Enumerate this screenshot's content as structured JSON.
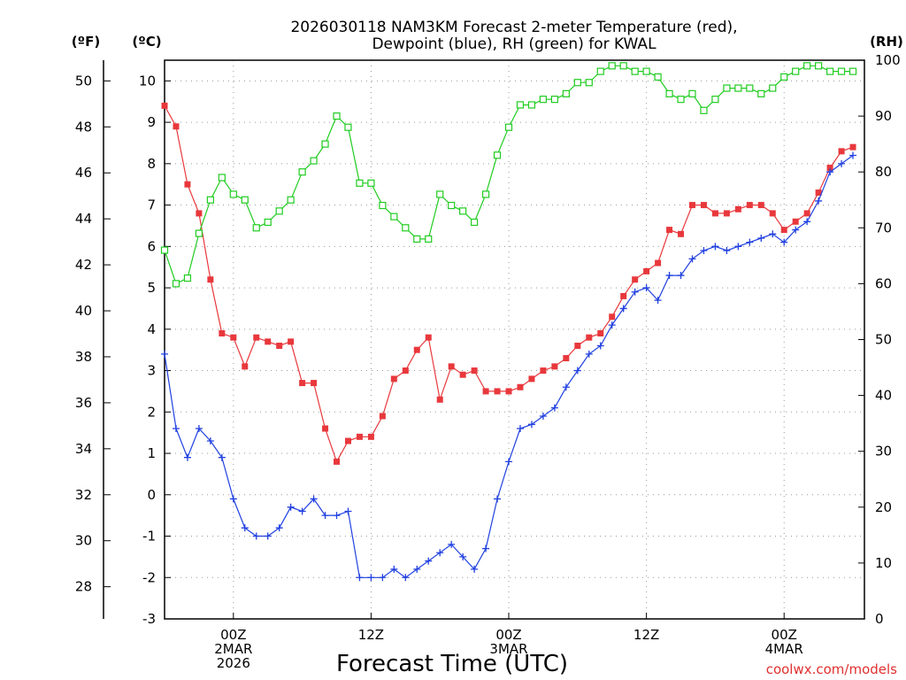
{
  "chart_data": {
    "type": "line",
    "title": "2026030118 NAM3KM Forecast 2-meter Temperature (red),",
    "subtitle": "Dewpoint (blue), RH (green) for KWAL",
    "xlabel": "Forecast Time (UTC)",
    "credit": "coolwx.com/models",
    "axes": {
      "fahrenheit": {
        "label": "(ºF)",
        "ticks": [
          28,
          30,
          32,
          34,
          36,
          38,
          40,
          42,
          44,
          46,
          48,
          50
        ]
      },
      "celsius": {
        "label": "(ºC)",
        "ticks": [
          -3,
          -2,
          -1,
          0,
          1,
          2,
          3,
          4,
          5,
          6,
          7,
          8,
          9,
          10
        ],
        "ylim": [
          -3,
          10.5
        ]
      },
      "rh": {
        "label": "(RH)",
        "ticks": [
          0,
          10,
          20,
          30,
          40,
          50,
          60,
          70,
          80,
          90,
          100
        ],
        "ylim": [
          0,
          100
        ]
      }
    },
    "x_axis": {
      "xlim": [
        0,
        61
      ],
      "ticks": [
        {
          "hour": 6,
          "lines": [
            "00Z",
            "2MAR",
            "2026"
          ]
        },
        {
          "hour": 18,
          "lines": [
            "12Z"
          ]
        },
        {
          "hour": 30,
          "lines": [
            "00Z",
            "3MAR"
          ]
        },
        {
          "hour": 42,
          "lines": [
            "12Z"
          ]
        },
        {
          "hour": 54,
          "lines": [
            "00Z",
            "4MAR"
          ]
        }
      ]
    },
    "series": [
      {
        "name": "Temperature",
        "unit": "C",
        "color": "#e8383c",
        "marker": "filled-square",
        "values": [
          [
            0,
            9.4
          ],
          [
            1,
            8.9
          ],
          [
            2,
            7.5
          ],
          [
            3,
            6.8
          ],
          [
            4,
            5.2
          ],
          [
            5,
            3.9
          ],
          [
            6,
            3.8
          ],
          [
            7,
            3.1
          ],
          [
            8,
            3.8
          ],
          [
            9,
            3.7
          ],
          [
            10,
            3.6
          ],
          [
            11,
            3.7
          ],
          [
            12,
            2.7
          ],
          [
            13,
            2.7
          ],
          [
            14,
            1.6
          ],
          [
            15,
            0.8
          ],
          [
            16,
            1.3
          ],
          [
            17,
            1.4
          ],
          [
            18,
            1.4
          ],
          [
            19,
            1.9
          ],
          [
            20,
            2.8
          ],
          [
            21,
            3.0
          ],
          [
            22,
            3.5
          ],
          [
            23,
            3.8
          ],
          [
            24,
            2.3
          ],
          [
            25,
            3.1
          ],
          [
            26,
            2.9
          ],
          [
            27,
            3.0
          ],
          [
            28,
            2.5
          ],
          [
            29,
            2.5
          ],
          [
            30,
            2.5
          ],
          [
            31,
            2.6
          ],
          [
            32,
            2.8
          ],
          [
            33,
            3.0
          ],
          [
            34,
            3.1
          ],
          [
            35,
            3.3
          ],
          [
            36,
            3.6
          ],
          [
            37,
            3.8
          ],
          [
            38,
            3.9
          ],
          [
            39,
            4.3
          ],
          [
            40,
            4.8
          ],
          [
            41,
            5.2
          ],
          [
            42,
            5.4
          ],
          [
            43,
            5.6
          ],
          [
            44,
            6.4
          ],
          [
            45,
            6.3
          ],
          [
            46,
            7.0
          ],
          [
            47,
            7.0
          ],
          [
            48,
            6.8
          ],
          [
            49,
            6.8
          ],
          [
            50,
            6.9
          ],
          [
            51,
            7.0
          ],
          [
            52,
            7.0
          ],
          [
            53,
            6.8
          ],
          [
            54,
            6.4
          ],
          [
            55,
            6.6
          ],
          [
            56,
            6.8
          ],
          [
            57,
            7.3
          ],
          [
            58,
            7.9
          ],
          [
            59,
            8.3
          ],
          [
            60,
            8.4
          ]
        ]
      },
      {
        "name": "Dewpoint",
        "unit": "C",
        "color": "#2040e0",
        "marker": "plus",
        "values": [
          [
            0,
            3.4
          ],
          [
            1,
            1.6
          ],
          [
            2,
            0.9
          ],
          [
            3,
            1.6
          ],
          [
            4,
            1.3
          ],
          [
            5,
            0.9
          ],
          [
            6,
            -0.1
          ],
          [
            7,
            -0.8
          ],
          [
            8,
            -1.0
          ],
          [
            9,
            -1.0
          ],
          [
            10,
            -0.8
          ],
          [
            11,
            -0.3
          ],
          [
            12,
            -0.4
          ],
          [
            13,
            -0.1
          ],
          [
            14,
            -0.5
          ],
          [
            15,
            -0.5
          ],
          [
            16,
            -0.4
          ],
          [
            17,
            -2.0
          ],
          [
            18,
            -2.0
          ],
          [
            19,
            -2.0
          ],
          [
            20,
            -1.8
          ],
          [
            21,
            -2.0
          ],
          [
            22,
            -1.8
          ],
          [
            23,
            -1.6
          ],
          [
            24,
            -1.4
          ],
          [
            25,
            -1.2
          ],
          [
            26,
            -1.5
          ],
          [
            27,
            -1.8
          ],
          [
            28,
            -1.3
          ],
          [
            29,
            -0.1
          ],
          [
            30,
            0.8
          ],
          [
            31,
            1.6
          ],
          [
            32,
            1.7
          ],
          [
            33,
            1.9
          ],
          [
            34,
            2.1
          ],
          [
            35,
            2.6
          ],
          [
            36,
            3.0
          ],
          [
            37,
            3.4
          ],
          [
            38,
            3.6
          ],
          [
            39,
            4.1
          ],
          [
            40,
            4.5
          ],
          [
            41,
            4.9
          ],
          [
            42,
            5.0
          ],
          [
            43,
            4.7
          ],
          [
            44,
            5.3
          ],
          [
            45,
            5.3
          ],
          [
            46,
            5.7
          ],
          [
            47,
            5.9
          ],
          [
            48,
            6.0
          ],
          [
            49,
            5.9
          ],
          [
            50,
            6.0
          ],
          [
            51,
            6.1
          ],
          [
            52,
            6.2
          ],
          [
            53,
            6.3
          ],
          [
            54,
            6.1
          ],
          [
            55,
            6.4
          ],
          [
            56,
            6.6
          ],
          [
            57,
            7.1
          ],
          [
            58,
            7.8
          ],
          [
            59,
            8.0
          ],
          [
            60,
            8.2
          ]
        ]
      },
      {
        "name": "RH",
        "unit": "%",
        "color": "#20cc20",
        "marker": "open-square",
        "values": [
          [
            0,
            66
          ],
          [
            1,
            60
          ],
          [
            2,
            61
          ],
          [
            3,
            69
          ],
          [
            4,
            75
          ],
          [
            5,
            79
          ],
          [
            6,
            76
          ],
          [
            7,
            75
          ],
          [
            8,
            70
          ],
          [
            9,
            71
          ],
          [
            10,
            73
          ],
          [
            11,
            75
          ],
          [
            12,
            80
          ],
          [
            13,
            82
          ],
          [
            14,
            85
          ],
          [
            15,
            90
          ],
          [
            16,
            88
          ],
          [
            17,
            78
          ],
          [
            18,
            78
          ],
          [
            19,
            74
          ],
          [
            20,
            72
          ],
          [
            21,
            70
          ],
          [
            22,
            68
          ],
          [
            23,
            68
          ],
          [
            24,
            76
          ],
          [
            25,
            74
          ],
          [
            26,
            73
          ],
          [
            27,
            71
          ],
          [
            28,
            76
          ],
          [
            29,
            83
          ],
          [
            30,
            88
          ],
          [
            31,
            92
          ],
          [
            32,
            92
          ],
          [
            33,
            93
          ],
          [
            34,
            93
          ],
          [
            35,
            94
          ],
          [
            36,
            96
          ],
          [
            37,
            96
          ],
          [
            38,
            98
          ],
          [
            39,
            99
          ],
          [
            40,
            99
          ],
          [
            41,
            98
          ],
          [
            42,
            98
          ],
          [
            43,
            97
          ],
          [
            44,
            94
          ],
          [
            45,
            93
          ],
          [
            46,
            94
          ],
          [
            47,
            91
          ],
          [
            48,
            93
          ],
          [
            49,
            95
          ],
          [
            50,
            95
          ],
          [
            51,
            95
          ],
          [
            52,
            94
          ],
          [
            53,
            95
          ],
          [
            54,
            97
          ],
          [
            55,
            98
          ],
          [
            56,
            99
          ],
          [
            57,
            99
          ],
          [
            58,
            98
          ],
          [
            59,
            98
          ],
          [
            60,
            98
          ]
        ]
      }
    ]
  }
}
